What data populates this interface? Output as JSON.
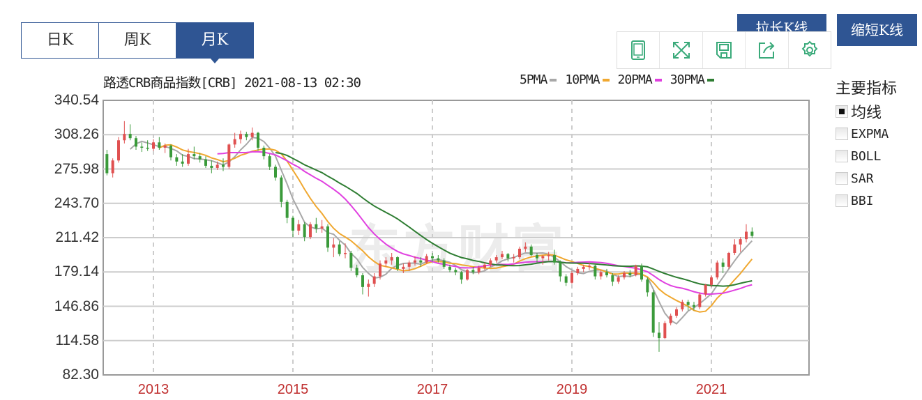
{
  "tabs": [
    {
      "label": "日K"
    },
    {
      "label": "周K"
    },
    {
      "label": "月K"
    }
  ],
  "active_tab": 2,
  "buttons": {
    "lengthen": "拉长K线",
    "shorten": "缩短K线"
  },
  "toolbar": [
    "phone-icon",
    "fullscreen-icon",
    "save-icon",
    "share-icon",
    "gear-icon"
  ],
  "watermark": "东方财富",
  "title": "路透CRB商品指数[CRB] 2021-08-13 02:30",
  "legend": [
    {
      "label": "5PMA",
      "color": "#a8a8a8"
    },
    {
      "label": "10PMA",
      "color": "#f0a830"
    },
    {
      "label": "20PMA",
      "color": "#e040e0"
    },
    {
      "label": "30PMA",
      "color": "#2e7d32"
    }
  ],
  "indicators": {
    "title": "主要指标",
    "items": [
      {
        "label": "均线",
        "checked": true
      },
      {
        "label": "EXPMA",
        "checked": false
      },
      {
        "label": "BOLL",
        "checked": false
      },
      {
        "label": "SAR",
        "checked": false
      },
      {
        "label": "BBI",
        "checked": false
      }
    ]
  },
  "chart_data": {
    "type": "candlestick",
    "title": "路透CRB商品指数[CRB] 2021-08-13 02:30",
    "yticks": [
      "340.54",
      "308.26",
      "275.98",
      "243.70",
      "211.42",
      "179.14",
      "146.86",
      "114.58",
      "82.30"
    ],
    "ylim": [
      82.3,
      340.54
    ],
    "xticks": [
      "2013",
      "2015",
      "2017",
      "2019",
      "2021"
    ],
    "grid": true,
    "up_color": "#e05050",
    "down_color": "#3a9a3a",
    "moving_averages": [
      5,
      10,
      20,
      30
    ],
    "x": [
      "2012-05",
      "2012-06",
      "2012-07",
      "2012-08",
      "2012-09",
      "2012-10",
      "2012-11",
      "2012-12",
      "2013-01",
      "2013-02",
      "2013-03",
      "2013-04",
      "2013-05",
      "2013-06",
      "2013-07",
      "2013-08",
      "2013-09",
      "2013-10",
      "2013-11",
      "2013-12",
      "2014-01",
      "2014-02",
      "2014-03",
      "2014-04",
      "2014-05",
      "2014-06",
      "2014-07",
      "2014-08",
      "2014-09",
      "2014-10",
      "2014-11",
      "2014-12",
      "2015-01",
      "2015-02",
      "2015-03",
      "2015-04",
      "2015-05",
      "2015-06",
      "2015-07",
      "2015-08",
      "2015-09",
      "2015-10",
      "2015-11",
      "2015-12",
      "2016-01",
      "2016-02",
      "2016-03",
      "2016-04",
      "2016-05",
      "2016-06",
      "2016-07",
      "2016-08",
      "2016-09",
      "2016-10",
      "2016-11",
      "2016-12",
      "2017-01",
      "2017-02",
      "2017-03",
      "2017-04",
      "2017-05",
      "2017-06",
      "2017-07",
      "2017-08",
      "2017-09",
      "2017-10",
      "2017-11",
      "2017-12",
      "2018-01",
      "2018-02",
      "2018-03",
      "2018-04",
      "2018-05",
      "2018-06",
      "2018-07",
      "2018-08",
      "2018-09",
      "2018-10",
      "2018-11",
      "2018-12",
      "2019-01",
      "2019-02",
      "2019-03",
      "2019-04",
      "2019-05",
      "2019-06",
      "2019-07",
      "2019-08",
      "2019-09",
      "2019-10",
      "2019-11",
      "2019-12",
      "2020-01",
      "2020-02",
      "2020-03",
      "2020-04",
      "2020-05",
      "2020-06",
      "2020-07",
      "2020-08",
      "2020-09",
      "2020-10",
      "2020-11",
      "2020-12",
      "2021-01",
      "2021-02",
      "2021-03",
      "2021-04",
      "2021-05",
      "2021-06",
      "2021-07",
      "2021-08"
    ],
    "ohlc": [
      [
        290,
        294,
        270,
        272
      ],
      [
        272,
        286,
        268,
        284
      ],
      [
        284,
        306,
        282,
        303
      ],
      [
        303,
        321,
        300,
        309
      ],
      [
        309,
        318,
        303,
        305
      ],
      [
        305,
        307,
        294,
        297
      ],
      [
        297,
        301,
        292,
        296
      ],
      [
        296,
        303,
        293,
        295
      ],
      [
        295,
        304,
        293,
        301
      ],
      [
        301,
        306,
        294,
        296
      ],
      [
        296,
        300,
        291,
        298
      ],
      [
        298,
        299,
        284,
        287
      ],
      [
        287,
        290,
        279,
        283
      ],
      [
        283,
        290,
        278,
        281
      ],
      [
        281,
        295,
        279,
        290
      ],
      [
        290,
        297,
        285,
        288
      ],
      [
        288,
        291,
        282,
        285
      ],
      [
        285,
        288,
        277,
        279
      ],
      [
        279,
        284,
        272,
        277
      ],
      [
        277,
        283,
        275,
        280
      ],
      [
        280,
        286,
        274,
        278
      ],
      [
        278,
        300,
        276,
        299
      ],
      [
        299,
        310,
        296,
        304
      ],
      [
        304,
        312,
        300,
        309
      ],
      [
        309,
        311,
        303,
        306
      ],
      [
        306,
        315,
        303,
        310
      ],
      [
        310,
        311,
        293,
        296
      ],
      [
        296,
        298,
        285,
        288
      ],
      [
        288,
        290,
        275,
        278
      ],
      [
        278,
        280,
        265,
        268
      ],
      [
        268,
        270,
        240,
        245
      ],
      [
        245,
        247,
        225,
        230
      ],
      [
        230,
        232,
        212,
        218
      ],
      [
        218,
        228,
        214,
        224
      ],
      [
        224,
        226,
        208,
        212
      ],
      [
        212,
        226,
        210,
        224
      ],
      [
        224,
        230,
        216,
        220
      ],
      [
        220,
        228,
        216,
        222
      ],
      [
        222,
        224,
        198,
        202
      ],
      [
        202,
        211,
        193,
        205
      ],
      [
        205,
        208,
        194,
        196
      ],
      [
        196,
        206,
        192,
        197
      ],
      [
        197,
        199,
        180,
        183
      ],
      [
        183,
        186,
        174,
        176
      ],
      [
        176,
        178,
        158,
        165
      ],
      [
        165,
        172,
        156,
        168
      ],
      [
        168,
        178,
        165,
        175
      ],
      [
        175,
        190,
        172,
        187
      ],
      [
        187,
        193,
        184,
        190
      ],
      [
        190,
        197,
        186,
        193
      ],
      [
        193,
        194,
        180,
        182
      ],
      [
        182,
        187,
        178,
        184
      ],
      [
        184,
        190,
        180,
        188
      ],
      [
        188,
        194,
        185,
        190
      ],
      [
        190,
        193,
        184,
        188
      ],
      [
        188,
        196,
        187,
        194
      ],
      [
        194,
        197,
        189,
        192
      ],
      [
        192,
        195,
        188,
        190
      ],
      [
        190,
        192,
        182,
        184
      ],
      [
        184,
        186,
        179,
        181
      ],
      [
        181,
        183,
        176,
        179
      ],
      [
        179,
        180,
        168,
        172
      ],
      [
        172,
        182,
        171,
        181
      ],
      [
        181,
        184,
        177,
        179
      ],
      [
        179,
        185,
        177,
        183
      ],
      [
        183,
        188,
        181,
        186
      ],
      [
        186,
        192,
        184,
        190
      ],
      [
        190,
        195,
        188,
        193
      ],
      [
        193,
        199,
        191,
        196
      ],
      [
        196,
        197,
        189,
        192
      ],
      [
        192,
        196,
        188,
        193
      ],
      [
        193,
        203,
        191,
        201
      ],
      [
        201,
        207,
        198,
        203
      ],
      [
        203,
        205,
        194,
        195
      ],
      [
        195,
        197,
        188,
        192
      ],
      [
        192,
        195,
        186,
        194
      ],
      [
        194,
        198,
        190,
        195
      ],
      [
        195,
        200,
        186,
        188
      ],
      [
        188,
        190,
        170,
        175
      ],
      [
        175,
        177,
        166,
        169
      ],
      [
        169,
        180,
        168,
        178
      ],
      [
        178,
        184,
        176,
        182
      ],
      [
        182,
        186,
        179,
        184
      ],
      [
        184,
        188,
        181,
        185
      ],
      [
        185,
        186,
        172,
        175
      ],
      [
        175,
        181,
        172,
        179
      ],
      [
        179,
        182,
        174,
        176
      ],
      [
        176,
        178,
        166,
        170
      ],
      [
        170,
        176,
        168,
        174
      ],
      [
        174,
        180,
        172,
        178
      ],
      [
        178,
        181,
        174,
        176
      ],
      [
        176,
        186,
        175,
        185
      ],
      [
        185,
        187,
        170,
        172
      ],
      [
        172,
        174,
        156,
        160
      ],
      [
        160,
        162,
        118,
        122
      ],
      [
        122,
        132,
        104,
        117
      ],
      [
        117,
        133,
        116,
        131
      ],
      [
        131,
        140,
        129,
        138
      ],
      [
        138,
        146,
        136,
        144
      ],
      [
        144,
        153,
        142,
        151
      ],
      [
        151,
        153,
        143,
        148
      ],
      [
        148,
        151,
        143,
        146
      ],
      [
        146,
        160,
        144,
        158
      ],
      [
        158,
        168,
        156,
        167
      ],
      [
        167,
        176,
        165,
        174
      ],
      [
        174,
        190,
        172,
        188
      ],
      [
        188,
        192,
        178,
        184
      ],
      [
        184,
        198,
        182,
        197
      ],
      [
        197,
        210,
        195,
        205
      ],
      [
        205,
        212,
        198,
        210
      ],
      [
        210,
        224,
        207,
        217
      ],
      [
        217,
        221,
        211,
        213
      ]
    ]
  }
}
